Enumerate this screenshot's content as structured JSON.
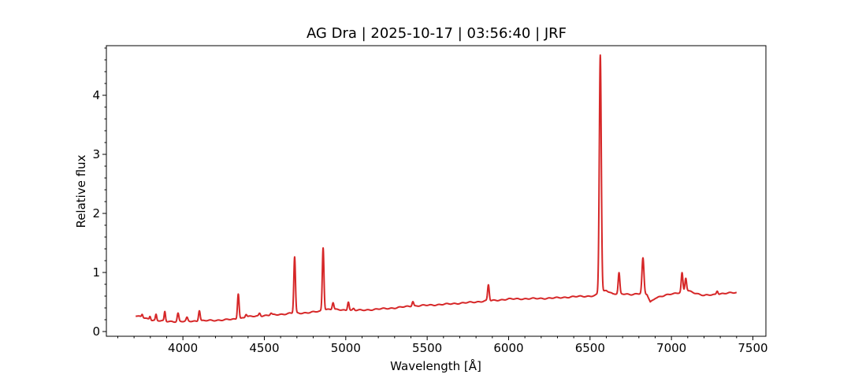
{
  "chart_data": {
    "type": "line",
    "title": "AG Dra | 2025-10-17 | 03:56:40 | JRF",
    "xlabel": "Wavelength [Å]",
    "ylabel": "Relative flux",
    "xlim": [
      3530,
      7580
    ],
    "ylim": [
      -0.08,
      4.84
    ],
    "xticks": [
      4000,
      4500,
      5000,
      5500,
      6000,
      6500,
      7000,
      7500
    ],
    "yticks": [
      0,
      1,
      2,
      3,
      4
    ],
    "xtick_labels": [
      "4000",
      "4500",
      "5000",
      "5500",
      "6000",
      "6500",
      "7000",
      "7500"
    ],
    "ytick_labels": [
      "0",
      "1",
      "2",
      "3",
      "4"
    ],
    "x_minor_step": 100,
    "y_minor_step": 0.2,
    "grid": false,
    "line_color": "#d62728",
    "series": [
      {
        "name": "",
        "baseline": [
          [
            3710,
            0.27
          ],
          [
            3800,
            0.2
          ],
          [
            3900,
            0.17
          ],
          [
            4000,
            0.17
          ],
          [
            4200,
            0.19
          ],
          [
            4330,
            0.21
          ],
          [
            4400,
            0.25
          ],
          [
            4500,
            0.27
          ],
          [
            4600,
            0.29
          ],
          [
            4660,
            0.31
          ],
          [
            4720,
            0.31
          ],
          [
            4800,
            0.33
          ],
          [
            4840,
            0.34
          ],
          [
            4880,
            0.38
          ],
          [
            5000,
            0.36
          ],
          [
            5100,
            0.36
          ],
          [
            5300,
            0.4
          ],
          [
            5400,
            0.43
          ],
          [
            5600,
            0.46
          ],
          [
            5800,
            0.5
          ],
          [
            5860,
            0.52
          ],
          [
            5890,
            0.52
          ],
          [
            6000,
            0.55
          ],
          [
            6200,
            0.56
          ],
          [
            6300,
            0.57
          ],
          [
            6400,
            0.59
          ],
          [
            6500,
            0.6
          ],
          [
            6530,
            0.61
          ],
          [
            6600,
            0.7
          ],
          [
            6640,
            0.64
          ],
          [
            6750,
            0.63
          ],
          [
            6800,
            0.64
          ],
          [
            6850,
            0.63
          ],
          [
            6870,
            0.5
          ],
          [
            6900,
            0.57
          ],
          [
            6950,
            0.6
          ],
          [
            7000,
            0.64
          ],
          [
            7050,
            0.66
          ],
          [
            7100,
            0.69
          ],
          [
            7150,
            0.65
          ],
          [
            7200,
            0.61
          ],
          [
            7250,
            0.62
          ],
          [
            7300,
            0.64
          ],
          [
            7400,
            0.66
          ]
        ],
        "lines": [
          {
            "x": 3750,
            "h": 0.05,
            "w": 4
          },
          {
            "x": 3798,
            "h": 0.06,
            "w": 4
          },
          {
            "x": 3835,
            "h": 0.1,
            "w": 4
          },
          {
            "x": 3889,
            "h": 0.16,
            "w": 4
          },
          {
            "x": 3970,
            "h": 0.14,
            "w": 5
          },
          {
            "x": 4025,
            "h": 0.06,
            "w": 5
          },
          {
            "x": 4101,
            "h": 0.18,
            "w": 5
          },
          {
            "x": 4340,
            "h": 0.43,
            "w": 5
          },
          {
            "x": 4388,
            "h": 0.05,
            "w": 5
          },
          {
            "x": 4471,
            "h": 0.05,
            "w": 5
          },
          {
            "x": 4541,
            "h": 0.03,
            "w": 5
          },
          {
            "x": 4686,
            "h": 0.95,
            "w": 5
          },
          {
            "x": 4861,
            "h": 1.06,
            "w": 5
          },
          {
            "x": 4922,
            "h": 0.12,
            "w": 5
          },
          {
            "x": 5016,
            "h": 0.15,
            "w": 5
          },
          {
            "x": 5048,
            "h": 0.03,
            "w": 5
          },
          {
            "x": 5412,
            "h": 0.08,
            "w": 5
          },
          {
            "x": 5876,
            "h": 0.27,
            "w": 5
          },
          {
            "x": 6563,
            "h": 4.03,
            "w": 6
          },
          {
            "x": 6678,
            "h": 0.35,
            "w": 5
          },
          {
            "x": 6825,
            "h": 0.6,
            "w": 6
          },
          {
            "x": 7065,
            "h": 0.32,
            "w": 5
          },
          {
            "x": 7088,
            "h": 0.22,
            "w": 5
          },
          {
            "x": 7281,
            "h": 0.06,
            "w": 5
          }
        ],
        "noise_amp": 0.012
      }
    ]
  }
}
